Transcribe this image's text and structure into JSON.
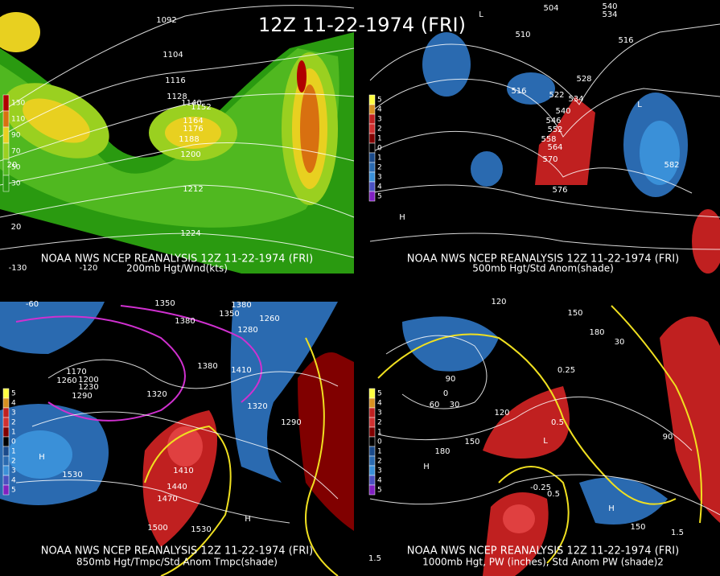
{
  "title": "12Z 11-22-1974 (FRI)",
  "panels": [
    {
      "caption": "NOAA NWS NCEP REANALYSIS 12Z 11-22-1974 (FRI)",
      "subcaption": "200mb Hgt/Wnd(kts)",
      "legend": [
        {
          "label": "130",
          "color": "#b00000"
        },
        {
          "label": "110",
          "color": "#d87010"
        },
        {
          "label": "90",
          "color": "#e8d020"
        },
        {
          "label": "70",
          "color": "#9ad020"
        },
        {
          "label": "50",
          "color": "#50b820"
        },
        {
          "label": "30",
          "color": "#2a9a10"
        }
      ],
      "labels": [
        "1092",
        "1104",
        "1116",
        "1128",
        "1140",
        "1152",
        "1164",
        "1176",
        "1188",
        "1200",
        "1212",
        "1224",
        "20",
        "20",
        "-120",
        "-130"
      ]
    },
    {
      "caption": "NOAA NWS NCEP REANALYSIS 12Z 11-22-1974 (FRI)",
      "subcaption": "500mb Hgt/Std Anom(shade)",
      "legend": [
        {
          "label": "5",
          "color": "#ffff40"
        },
        {
          "label": "4",
          "color": "#d89020"
        },
        {
          "label": "3",
          "color": "#c02020"
        },
        {
          "label": "2",
          "color": "#d03030"
        },
        {
          "label": "1",
          "color": "#800000"
        },
        {
          "label": "0",
          "color": "#000000"
        },
        {
          "label": "1",
          "color": "#1a4a8a"
        },
        {
          "label": "2",
          "color": "#2a6ab0"
        },
        {
          "label": "3",
          "color": "#3a90d8"
        },
        {
          "label": "4",
          "color": "#4a50c0"
        },
        {
          "label": "5",
          "color": "#8020c0"
        }
      ],
      "labels": [
        "504",
        "540",
        "534",
        "510",
        "516",
        "528",
        "516",
        "522",
        "534",
        "540",
        "546",
        "552",
        "558",
        "564",
        "570",
        "576",
        "582",
        "H",
        "L",
        "L"
      ]
    },
    {
      "caption": "NOAA NWS NCEP REANALYSIS 12Z 11-22-1974 (FRI)",
      "subcaption": "850mb Hgt/Tmpc/Std Anom Tmpc(shade)",
      "legend": [
        {
          "label": "5",
          "color": "#ffff40"
        },
        {
          "label": "4",
          "color": "#d89020"
        },
        {
          "label": "3",
          "color": "#c02020"
        },
        {
          "label": "2",
          "color": "#d03030"
        },
        {
          "label": "1",
          "color": "#800000"
        },
        {
          "label": "0",
          "color": "#000000"
        },
        {
          "label": "1",
          "color": "#1a4a8a"
        },
        {
          "label": "2",
          "color": "#2a6ab0"
        },
        {
          "label": "3",
          "color": "#3a90d8"
        },
        {
          "label": "4",
          "color": "#4a50c0"
        },
        {
          "label": "5",
          "color": "#8020c0"
        }
      ],
      "labels": [
        "1350",
        "1380",
        "1380",
        "1350",
        "1260",
        "1280",
        "1380",
        "1410",
        "1170",
        "1200",
        "1230",
        "1290",
        "1260",
        "1320",
        "1320",
        "1290",
        "1410",
        "1440",
        "1470",
        "1500",
        "1530",
        "1530",
        "H",
        "H",
        "-60"
      ]
    },
    {
      "caption": "NOAA NWS NCEP REANALYSIS 12Z 11-22-1974 (FRI)",
      "subcaption": "1000mb Hgt, PW (inches), Std Anom PW (shade)2",
      "legend": [
        {
          "label": "5",
          "color": "#ffff40"
        },
        {
          "label": "4",
          "color": "#d89020"
        },
        {
          "label": "3",
          "color": "#c02020"
        },
        {
          "label": "2",
          "color": "#d03030"
        },
        {
          "label": "1",
          "color": "#800000"
        },
        {
          "label": "0",
          "color": "#000000"
        },
        {
          "label": "1",
          "color": "#1a4a8a"
        },
        {
          "label": "2",
          "color": "#2a6ab0"
        },
        {
          "label": "3",
          "color": "#3a90d8"
        },
        {
          "label": "4",
          "color": "#4a50c0"
        },
        {
          "label": "5",
          "color": "#8020c0"
        }
      ],
      "labels": [
        "120",
        "180",
        "150",
        "30",
        "90",
        "0",
        "60",
        "30",
        "120",
        "150",
        "180",
        "150",
        "90",
        "0.25",
        "0.5",
        "-0.25",
        "0.5",
        "1.5",
        "1.5",
        "H",
        "H",
        "L"
      ]
    }
  ]
}
